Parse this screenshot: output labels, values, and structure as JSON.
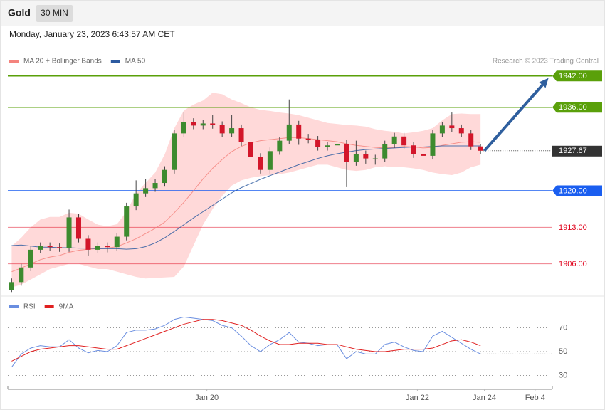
{
  "header": {
    "symbol": "Gold",
    "interval": "30 MIN",
    "timestamp": "Monday, January 23, 2023 6:43:57 AM CET",
    "copyright": "Research © 2023 Trading Central"
  },
  "chart_data": [
    {
      "type": "candlestick",
      "open": [
        1901.0,
        1902.5,
        1905.3,
        1908.7,
        1909.4,
        1909.2,
        1909.0,
        1914.9,
        1910.8,
        1908.7,
        1909.4,
        1909.2,
        1911.2,
        1917.0,
        1919.5,
        1920.5,
        1921.5,
        1924.0,
        1931.0,
        1933.2,
        1932.5,
        1932.9,
        1932.6,
        1931.0,
        1932.0,
        1929.3,
        1926.5,
        1924.0,
        1927.6,
        1929.6,
        1932.7,
        1930.0,
        1929.8,
        1928.4,
        1928.7,
        1929.0,
        1925.5,
        1927.0,
        1926.2,
        1926.2,
        1928.9,
        1930.4,
        1928.7,
        1927.0,
        1926.7,
        1931.0,
        1932.5,
        1932.0,
        1931.0,
        1928.5
      ],
      "high": [
        1903.2,
        1906.0,
        1909.4,
        1910.1,
        1910.1,
        1909.9,
        1916.4,
        1915.6,
        1911.5,
        1910.1,
        1910.1,
        1911.9,
        1917.7,
        1922.0,
        1922.2,
        1922.2,
        1924.7,
        1931.7,
        1935.0,
        1933.9,
        1933.6,
        1934.5,
        1933.3,
        1934.5,
        1932.7,
        1930.0,
        1927.2,
        1928.3,
        1930.3,
        1937.5,
        1933.4,
        1930.9,
        1930.5,
        1929.4,
        1929.7,
        1929.7,
        1929.6,
        1927.7,
        1926.9,
        1929.6,
        1931.1,
        1931.1,
        1929.4,
        1927.7,
        1931.7,
        1933.2,
        1935.0,
        1932.7,
        1931.7,
        1929.0
      ],
      "low": [
        1900.6,
        1901.8,
        1904.6,
        1908.0,
        1908.5,
        1908.3,
        1908.3,
        1910.1,
        1907.6,
        1908.0,
        1908.2,
        1908.5,
        1910.5,
        1916.3,
        1918.8,
        1919.8,
        1920.8,
        1923.3,
        1930.3,
        1931.8,
        1931.8,
        1931.9,
        1930.3,
        1930.3,
        1928.6,
        1925.8,
        1923.3,
        1923.3,
        1926.9,
        1928.9,
        1928.8,
        1929.1,
        1927.7,
        1927.7,
        1926.0,
        1920.7,
        1924.8,
        1925.2,
        1925.0,
        1925.5,
        1928.2,
        1928.0,
        1926.3,
        1924.0,
        1926.0,
        1930.3,
        1931.3,
        1930.3,
        1927.8,
        1927.0
      ],
      "close": [
        1902.5,
        1905.3,
        1908.7,
        1909.4,
        1909.2,
        1909.0,
        1914.9,
        1910.8,
        1908.7,
        1909.4,
        1909.2,
        1911.2,
        1917.0,
        1919.5,
        1920.5,
        1921.5,
        1924.0,
        1931.0,
        1933.2,
        1932.5,
        1932.9,
        1932.6,
        1931.0,
        1932.0,
        1929.3,
        1926.5,
        1924.0,
        1927.6,
        1929.6,
        1932.7,
        1930.0,
        1929.8,
        1928.4,
        1928.7,
        1929.0,
        1925.5,
        1927.0,
        1926.2,
        1926.2,
        1928.9,
        1930.4,
        1928.7,
        1927.0,
        1926.7,
        1931.0,
        1932.5,
        1932.0,
        1931.0,
        1928.5,
        1927.67
      ],
      "up_color": "#3d8b2f",
      "down_color": "#d3162a",
      "series": [
        {
          "name": "MA 20 + Bollinger Bands",
          "color": "#f4837d",
          "band_color": "#ffd9d9",
          "values": [
            1904.5,
            1905.2,
            1906.0,
            1906.8,
            1907.3,
            1907.6,
            1908.2,
            1908.6,
            1908.8,
            1908.9,
            1909.0,
            1909.3,
            1910.0,
            1910.8,
            1911.8,
            1912.8,
            1914.0,
            1915.8,
            1917.8,
            1920.0,
            1922.3,
            1924.3,
            1926.0,
            1927.5,
            1928.5,
            1929.2,
            1929.6,
            1929.8,
            1930.0,
            1930.2,
            1930.2,
            1930.0,
            1929.8,
            1929.6,
            1929.4,
            1929.0,
            1928.7,
            1928.5,
            1928.3,
            1928.2,
            1928.3,
            1928.5,
            1928.4,
            1928.2,
            1928.3,
            1928.7,
            1929.0,
            1929.3,
            1929.4,
            1929.3
          ],
          "upper": [
            1909.4,
            1911.0,
            1913.0,
            1914.5,
            1915.0,
            1915.0,
            1915.8,
            1915.6,
            1914.5,
            1913.5,
            1913.2,
            1913.6,
            1916.0,
            1919.5,
            1921.5,
            1923.5,
            1927.0,
            1932.0,
            1935.4,
            1936.5,
            1937.3,
            1938.8,
            1938.5,
            1937.5,
            1936.8,
            1936.0,
            1935.5,
            1935.3,
            1935.0,
            1934.8,
            1934.5,
            1934.0,
            1933.5,
            1933.0,
            1932.8,
            1932.6,
            1932.5,
            1932.3,
            1931.8,
            1931.5,
            1931.3,
            1931.0,
            1931.2,
            1931.5,
            1932.0,
            1933.5,
            1934.7,
            1934.8,
            1934.7,
            1934.7
          ],
          "lower": [
            1901.5,
            1902.0,
            1903.0,
            1904.0,
            1905.0,
            1905.5,
            1906.0,
            1906.0,
            1905.5,
            1905.0,
            1905.0,
            1904.5,
            1904.0,
            1903.5,
            1903.2,
            1903.3,
            1903.4,
            1903.5,
            1905.5,
            1909.5,
            1913.5,
            1916.5,
            1919.0,
            1921.0,
            1922.0,
            1922.5,
            1922.8,
            1923.0,
            1923.2,
            1923.5,
            1924.0,
            1924.5,
            1925.0,
            1925.0,
            1924.5,
            1924.0,
            1923.8,
            1924.0,
            1924.5,
            1924.7,
            1924.5,
            1924.5,
            1924.3,
            1924.0,
            1923.5,
            1923.2,
            1923.0,
            1923.5,
            1924.5,
            1925.0
          ]
        },
        {
          "name": "MA 50",
          "color": "#2c5aa0",
          "values": [
            1909.5,
            1909.6,
            1909.4,
            1909.2,
            1909.2,
            1909.1,
            1909.1,
            1909.0,
            1909.0,
            1908.9,
            1908.9,
            1908.9,
            1908.8,
            1908.9,
            1909.3,
            1910.0,
            1911.0,
            1912.2,
            1913.5,
            1914.8,
            1916.0,
            1917.2,
            1918.4,
            1919.6,
            1920.6,
            1921.4,
            1922.2,
            1922.9,
            1923.6,
            1924.3,
            1925.0,
            1925.6,
            1926.2,
            1926.7,
            1927.1,
            1927.4,
            1927.7,
            1927.9,
            1928.0,
            1928.1,
            1928.2,
            1928.3,
            1928.4,
            1928.4,
            1928.5,
            1928.6,
            1928.6,
            1928.6,
            1928.6,
            1928.6
          ]
        }
      ],
      "levels": [
        {
          "value": 1942,
          "label": "1942.00",
          "color": "#5aa00a",
          "style": "box"
        },
        {
          "value": 1936,
          "label": "1936.00",
          "color": "#5aa00a",
          "style": "box"
        },
        {
          "value": 1927.67,
          "label": "1927.67",
          "color": "#333333",
          "style": "dotted"
        },
        {
          "value": 1920,
          "label": "1920.00",
          "color": "#1a5ef0",
          "style": "box"
        },
        {
          "value": 1913,
          "label": "1913.00",
          "color": "#e0001a",
          "style": "text"
        },
        {
          "value": 1906,
          "label": "1906.00",
          "color": "#e0001a",
          "style": "text"
        }
      ],
      "arrow": {
        "x": [
          49.4,
          56.1
        ],
        "y": [
          1927.67,
          1941.6
        ],
        "color": "#2f5f9e"
      },
      "xlim": [
        -0.4,
        56.5
      ],
      "ylim": [
        1900.5,
        1943.6
      ]
    },
    {
      "type": "line",
      "series": [
        {
          "name": "RSI",
          "color": "#6a8ee0",
          "values": [
            37,
            48,
            53,
            55,
            54,
            54,
            60,
            53,
            49,
            51,
            50,
            55,
            66,
            68,
            68,
            69,
            72,
            77,
            79,
            78,
            77,
            76,
            72,
            70,
            63,
            55,
            50,
            56,
            60,
            66,
            58,
            57,
            55,
            56,
            56,
            44,
            50,
            48,
            48,
            56,
            58,
            54,
            51,
            50,
            63,
            67,
            62,
            57,
            52,
            48
          ]
        },
        {
          "name": "9MA",
          "color": "#e02020",
          "values": [
            42,
            46,
            50,
            52,
            53,
            54,
            55,
            55,
            54,
            53,
            52,
            52,
            55,
            58,
            61,
            64,
            67,
            70,
            73,
            75,
            77,
            77,
            76,
            74,
            72,
            68,
            63,
            59,
            56,
            56,
            57,
            57,
            57,
            56,
            56,
            54,
            52,
            51,
            50,
            50,
            51,
            52,
            52,
            52,
            53,
            56,
            59,
            60,
            58,
            55
          ]
        }
      ],
      "xlim": [
        -0.4,
        56.5
      ],
      "ylim": [
        19.6,
        82.2
      ],
      "yticks": [
        30,
        50,
        70
      ],
      "grid": true,
      "xticks": [
        {
          "value": 20.4,
          "label": "Jan 20"
        },
        {
          "value": 42.4,
          "label": "Jan 22"
        },
        {
          "value": 49.4,
          "label": "Jan 24"
        },
        {
          "value": 54.7,
          "label": "Feb 4"
        }
      ]
    }
  ]
}
